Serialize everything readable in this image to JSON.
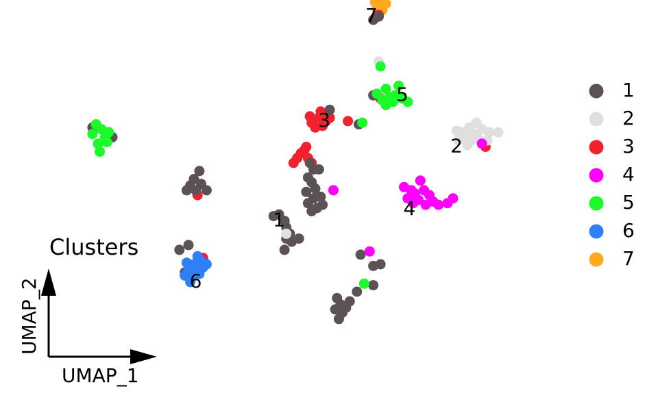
{
  "chart_data": {
    "type": "scatter",
    "title": "Clusters",
    "xlabel": "UMAP_1",
    "ylabel": "UMAP_2",
    "xlim": [
      -14,
      14
    ],
    "ylim": [
      -10,
      10
    ],
    "grid": false,
    "legend_position": "right",
    "clusters": [
      {
        "name": "1",
        "color": "#5a5255",
        "label_xy": [
          -2,
          -1.6
        ]
      },
      {
        "name": "2",
        "color": "#e0dfdf",
        "label_xy": [
          7.8,
          3.0
        ]
      },
      {
        "name": "3",
        "color": "#f0222e",
        "label_xy": [
          0.5,
          4.6
        ]
      },
      {
        "name": "4",
        "color": "#ff00ff",
        "label_xy": [
          5.2,
          -0.9
        ]
      },
      {
        "name": "5",
        "color": "#1cfb2a",
        "label_xy": [
          4.8,
          6.2
        ]
      },
      {
        "name": "6",
        "color": "#2f80f7",
        "label_xy": [
          -6.6,
          -5.4
        ]
      },
      {
        "name": "7",
        "color": "#ffa91f",
        "label_xy": [
          3.1,
          11.1
        ]
      }
    ],
    "points": [
      {
        "c": "7",
        "xy": [
          [
            3.5,
            12.2
          ],
          [
            3.8,
            12.1
          ],
          [
            3.6,
            11.8
          ],
          [
            3.9,
            11.9
          ],
          [
            3.4,
            11.6
          ],
          [
            3.7,
            11.5
          ],
          [
            3.3,
            12.0
          ]
        ]
      },
      {
        "c": "3",
        "xy": [
          [
            3.5,
            11.2
          ],
          [
            3.3,
            11.0
          ],
          [
            0.8,
            4.8
          ],
          [
            0.5,
            5.0
          ],
          [
            0.2,
            4.8
          ],
          [
            -0.2,
            4.5
          ],
          [
            0.0,
            4.2
          ],
          [
            0.4,
            4.3
          ],
          [
            0.6,
            4.6
          ],
          [
            -0.3,
            4.9
          ],
          [
            0.3,
            5.2
          ],
          [
            -0.5,
            3.0
          ],
          [
            -0.8,
            2.6
          ],
          [
            -1.0,
            2.3
          ],
          [
            -0.6,
            2.8
          ],
          [
            -0.4,
            2.3
          ],
          [
            -1.2,
            2.0
          ],
          [
            -0.2,
            2.0
          ],
          [
            1.8,
            4.6
          ],
          [
            3.6,
            6.0
          ],
          [
            -6.2,
            -3.9
          ],
          [
            9.4,
            3.0
          ],
          [
            -6.5,
            0.0
          ]
        ]
      },
      {
        "c": "1",
        "xy": [
          [
            3.2,
            10.9
          ],
          [
            3.5,
            11.1
          ],
          [
            3.2,
            6.2
          ],
          [
            0.8,
            5.3
          ],
          [
            2.4,
            4.4
          ],
          [
            -0.3,
            2.0
          ],
          [
            -0.1,
            1.6
          ],
          [
            0.2,
            1.6
          ],
          [
            -0.4,
            1.1
          ],
          [
            -0.2,
            0.8
          ],
          [
            0.0,
            0.4
          ],
          [
            -0.5,
            0.2
          ],
          [
            -0.1,
            -0.2
          ],
          [
            0.3,
            -0.1
          ],
          [
            -0.4,
            -0.5
          ],
          [
            0.1,
            -0.8
          ],
          [
            -0.2,
            -1.0
          ],
          [
            0.4,
            -0.6
          ],
          [
            -2.0,
            -1.2
          ],
          [
            -2.3,
            -1.3
          ],
          [
            -1.7,
            -1.6
          ],
          [
            -1.6,
            -2.0
          ],
          [
            -1.4,
            -2.4
          ],
          [
            -1.6,
            -2.7
          ],
          [
            -1.3,
            -2.9
          ],
          [
            -0.9,
            -2.7
          ],
          [
            -6.4,
            1.5
          ],
          [
            -6.7,
            1.0
          ],
          [
            -6.9,
            0.6
          ],
          [
            -7.1,
            0.3
          ],
          [
            -6.3,
            0.7
          ],
          [
            -6.6,
            0.3
          ],
          [
            -6.0,
            0.3
          ],
          [
            -12.3,
            4.2
          ],
          [
            -11.2,
            3.6
          ],
          [
            -7.0,
            -3.1
          ],
          [
            -7.5,
            -3.4
          ],
          [
            -7.2,
            -4.8
          ],
          [
            -6.1,
            -4.2
          ],
          [
            1.2,
            -6.4
          ],
          [
            1.4,
            -6.8
          ],
          [
            1.1,
            -7.1
          ],
          [
            1.5,
            -7.3
          ],
          [
            1.3,
            -7.7
          ],
          [
            1.7,
            -7.0
          ],
          [
            1.9,
            -6.6
          ],
          [
            2.3,
            -6.0
          ],
          [
            3.2,
            -5.6
          ],
          [
            3.6,
            -4.3
          ],
          [
            3.2,
            -4.4
          ],
          [
            2.5,
            -3.7
          ],
          [
            -1.7,
            -3.4
          ]
        ]
      },
      {
        "c": "2",
        "xy": [
          [
            3.5,
            8.3
          ],
          [
            8.9,
            4.5
          ],
          [
            8.5,
            4.2
          ],
          [
            9.2,
            4.1
          ],
          [
            8.1,
            3.9
          ],
          [
            8.8,
            3.8
          ],
          [
            9.6,
            3.9
          ],
          [
            7.8,
            4.0
          ],
          [
            8.3,
            3.6
          ],
          [
            9.0,
            3.5
          ],
          [
            8.6,
            3.4
          ],
          [
            9.5,
            3.4
          ],
          [
            10.1,
            3.9
          ],
          [
            7.9,
            3.4
          ],
          [
            8.4,
            3.1
          ],
          [
            -1.6,
            -2.4
          ]
        ]
      },
      {
        "c": "4",
        "xy": [
          [
            9.2,
            3.2
          ],
          [
            4.9,
            0.5
          ],
          [
            5.3,
            0.3
          ],
          [
            5.8,
            0.9
          ],
          [
            5.5,
            0.1
          ],
          [
            6.0,
            0.3
          ],
          [
            6.3,
            0.0
          ],
          [
            5.7,
            -0.3
          ],
          [
            6.5,
            -0.4
          ],
          [
            5.1,
            -0.2
          ],
          [
            6.8,
            -0.6
          ],
          [
            7.3,
            -0.5
          ],
          [
            7.6,
            -0.2
          ],
          [
            6.1,
            -0.6
          ],
          [
            5.4,
            -0.5
          ],
          [
            3.0,
            -3.5
          ],
          [
            1.0,
            0.3
          ]
        ]
      },
      {
        "c": "5",
        "xy": [
          [
            3.6,
            8.0
          ],
          [
            3.4,
            6.3
          ],
          [
            3.9,
            6.6
          ],
          [
            4.1,
            6.1
          ],
          [
            3.7,
            5.9
          ],
          [
            4.4,
            6.2
          ],
          [
            4.6,
            6.8
          ],
          [
            4.3,
            5.8
          ],
          [
            3.9,
            5.6
          ],
          [
            4.8,
            6.0
          ],
          [
            5.1,
            5.8
          ],
          [
            2.6,
            4.5
          ],
          [
            2.7,
            -5.5
          ],
          [
            -12.1,
            4.4
          ],
          [
            -11.8,
            4.1
          ],
          [
            -12.3,
            3.8
          ],
          [
            -11.6,
            3.6
          ],
          [
            -12.0,
            3.2
          ],
          [
            -11.4,
            3.9
          ],
          [
            -11.9,
            2.7
          ],
          [
            -11.5,
            3.3
          ]
        ]
      },
      {
        "c": "6",
        "xy": [
          [
            -7.1,
            -4.2
          ],
          [
            -6.7,
            -4.3
          ],
          [
            -6.3,
            -4.1
          ],
          [
            -7.0,
            -4.6
          ],
          [
            -6.6,
            -4.7
          ],
          [
            -6.2,
            -4.5
          ],
          [
            -7.2,
            -5.0
          ],
          [
            -6.8,
            -5.1
          ],
          [
            -6.4,
            -4.9
          ],
          [
            -6.0,
            -4.3
          ],
          [
            -6.9,
            -5.4
          ],
          [
            -6.5,
            -3.8
          ]
        ]
      }
    ]
  },
  "ui": {
    "title": "Clusters",
    "x_arrow_label": "UMAP_1",
    "y_arrow_label": "UMAP_2"
  }
}
